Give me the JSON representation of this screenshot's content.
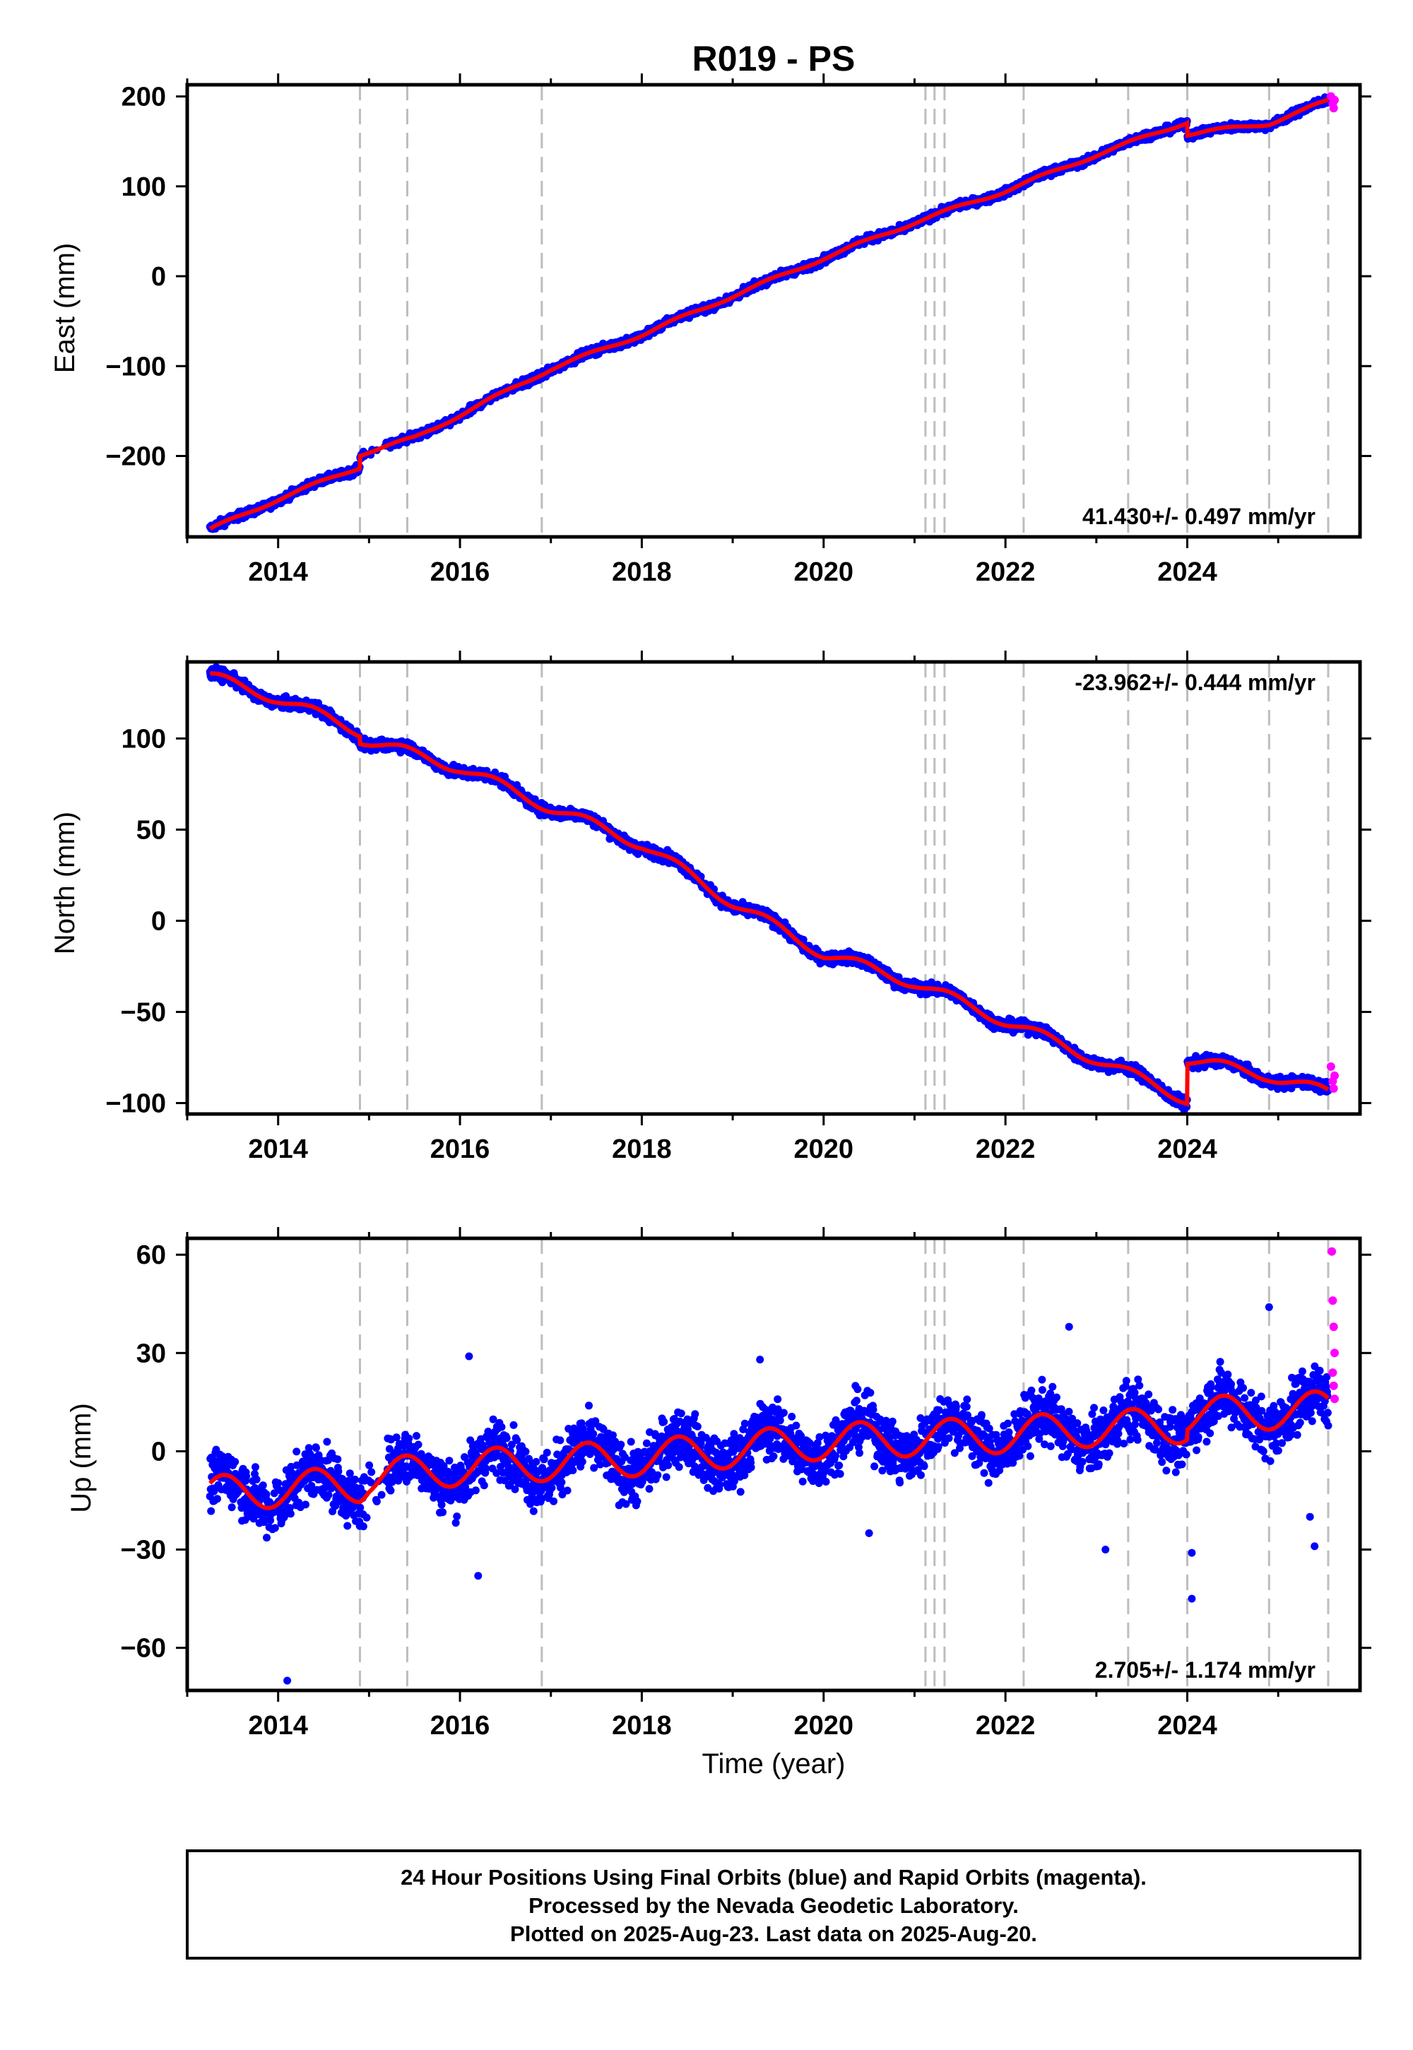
{
  "figure": {
    "title": "R019 - PS",
    "xlabel": "Time (year)"
  },
  "footer": {
    "lines": [
      "24 Hour Positions Using Final Orbits (blue) and Rapid Orbits (magenta).",
      "Processed by the Nevada Geodetic Laboratory.",
      "Plotted on 2025-Aug-23. Last data on 2025-Aug-20."
    ]
  },
  "colors": {
    "final_orbits": "#0000ff",
    "rapid_orbits": "#ff00ff",
    "model_fit": "#ff0000",
    "event_lines": "#bdbdbd",
    "frame": "#000000"
  },
  "chart_data": [
    {
      "type": "scatter",
      "name": "east",
      "ylabel": "East (mm)",
      "rate_label": "41.430+/- 0.497 mm/yr",
      "rate_position": "bottom-right",
      "xlim": [
        2013.0,
        2025.9
      ],
      "ylim": [
        -290,
        213
      ],
      "xticks": [
        2014,
        2016,
        2018,
        2020,
        2022,
        2024
      ],
      "yticks": [
        -200,
        -100,
        0,
        100,
        200
      ],
      "tick_labels_y": [
        "−200",
        "−100",
        "0",
        "100",
        "200"
      ],
      "data_start": 2013.25,
      "final_end": 2025.55,
      "rapid_start": 2025.55,
      "rapid_end": 2025.63,
      "noise": 3,
      "trend_points": [
        [
          2013.25,
          -282
        ],
        [
          2014.0,
          -248
        ],
        [
          2014.9,
          -212
        ],
        [
          2014.9,
          -198
        ],
        [
          2015.5,
          -180
        ],
        [
          2017.0,
          -103
        ],
        [
          2018.0,
          -65
        ],
        [
          2019.0,
          -22
        ],
        [
          2020.0,
          20
        ],
        [
          2021.0,
          60
        ],
        [
          2022.0,
          95
        ],
        [
          2023.0,
          135
        ],
        [
          2024.0,
          172
        ],
        [
          2024.0,
          158
        ],
        [
          2024.9,
          170
        ],
        [
          2025.6,
          197
        ]
      ],
      "seasonal_amp": 2,
      "rapid_points": [
        [
          2025.58,
          200
        ],
        [
          2025.6,
          192
        ],
        [
          2025.61,
          187
        ],
        [
          2025.62,
          196
        ]
      ],
      "outliers": []
    },
    {
      "type": "scatter",
      "name": "north",
      "ylabel": "North (mm)",
      "rate_label": "-23.962+/- 0.444 mm/yr",
      "rate_position": "top-right",
      "xlim": [
        2013.0,
        2025.9
      ],
      "ylim": [
        -106,
        142
      ],
      "xticks": [
        2014,
        2016,
        2018,
        2020,
        2022,
        2024
      ],
      "yticks": [
        -100,
        -50,
        0,
        50,
        100
      ],
      "tick_labels_y": [
        "−100",
        "−50",
        "0",
        "50",
        "100"
      ],
      "data_start": 2013.25,
      "final_end": 2025.55,
      "rapid_start": 2025.55,
      "rapid_end": 2025.63,
      "noise": 2.2,
      "trend_points": [
        [
          2013.25,
          134
        ],
        [
          2014.0,
          122
        ],
        [
          2014.9,
          104
        ],
        [
          2014.9,
          100
        ],
        [
          2016.0,
          84
        ],
        [
          2017.0,
          62
        ],
        [
          2018.0,
          42
        ],
        [
          2019.0,
          10
        ],
        [
          2020.0,
          -18
        ],
        [
          2021.0,
          -34
        ],
        [
          2022.0,
          -55
        ],
        [
          2023.0,
          -76
        ],
        [
          2024.0,
          -98
        ],
        [
          2024.0,
          -76
        ],
        [
          2024.9,
          -85
        ],
        [
          2025.6,
          -95
        ]
      ],
      "seasonal_amp": 3,
      "rapid_points": [
        [
          2025.58,
          -80
        ],
        [
          2025.6,
          -88
        ],
        [
          2025.61,
          -92
        ],
        [
          2025.62,
          -85
        ]
      ],
      "outliers": []
    },
    {
      "type": "scatter",
      "name": "up",
      "ylabel": "Up (mm)",
      "rate_label": "2.705+/- 1.174 mm/yr",
      "rate_position": "bottom-right",
      "xlim": [
        2013.0,
        2025.9
      ],
      "ylim": [
        -73,
        65
      ],
      "xticks": [
        2014,
        2016,
        2018,
        2020,
        2022,
        2024
      ],
      "yticks": [
        -60,
        -30,
        0,
        30,
        60
      ],
      "tick_labels_y": [
        "−60",
        "−30",
        "0",
        "30",
        "60"
      ],
      "data_start": 2013.25,
      "final_end": 2025.55,
      "rapid_start": 2025.55,
      "rapid_end": 2025.63,
      "noise": 6,
      "trend_points": [
        [
          2013.25,
          -13
        ],
        [
          2014.9,
          -10
        ],
        [
          2015.0,
          -8
        ],
        [
          2016.0,
          -5
        ],
        [
          2018.0,
          -2
        ],
        [
          2020.0,
          3
        ],
        [
          2021.0,
          4
        ],
        [
          2022.0,
          5
        ],
        [
          2023.0,
          7
        ],
        [
          2024.0,
          8
        ],
        [
          2024.0,
          11
        ],
        [
          2025.6,
          13
        ]
      ],
      "seasonal_amp": 5.5,
      "rapid_points": [
        [
          2025.59,
          61
        ],
        [
          2025.6,
          46
        ],
        [
          2025.61,
          38
        ],
        [
          2025.62,
          30
        ],
        [
          2025.6,
          24
        ],
        [
          2025.61,
          20
        ],
        [
          2025.62,
          16
        ]
      ],
      "outliers": [
        [
          2014.1,
          -70
        ],
        [
          2016.2,
          -38
        ],
        [
          2023.1,
          -30
        ],
        [
          2024.05,
          -45
        ],
        [
          2024.05,
          -31
        ],
        [
          2025.35,
          -20
        ],
        [
          2025.4,
          -29
        ],
        [
          2019.3,
          28
        ],
        [
          2016.1,
          29
        ],
        [
          2022.7,
          38
        ],
        [
          2024.9,
          44
        ],
        [
          2020.5,
          -25
        ]
      ]
    }
  ],
  "events": {
    "years": [
      2014.9,
      2015.42,
      2016.9,
      2021.12,
      2021.22,
      2021.33,
      2022.2,
      2023.35,
      2024.0,
      2024.9,
      2025.55
    ]
  }
}
